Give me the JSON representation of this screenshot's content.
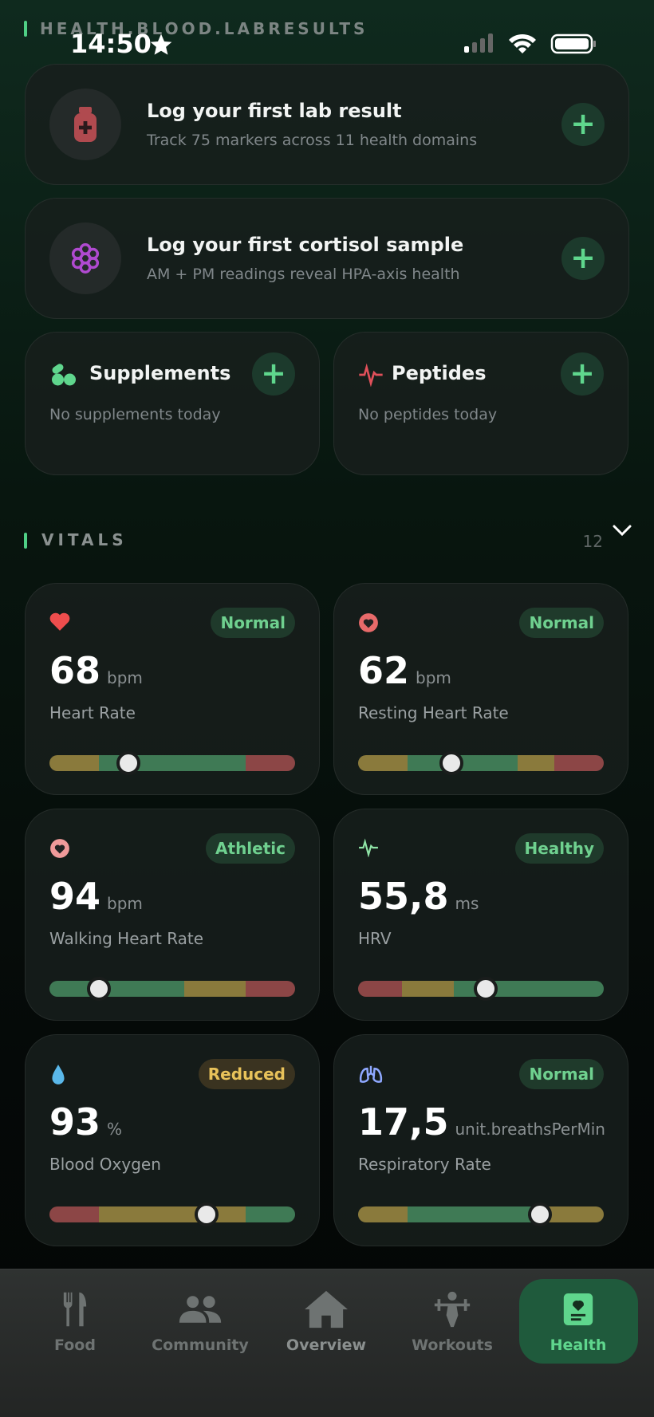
{
  "status_bar": {
    "time": "14:50"
  },
  "section_label": "HEALTH.BLOOD.LABRESULTS",
  "prompts": [
    {
      "title": "Log your first lab result",
      "subtitle": "Track 75 markers across 11 health domains"
    },
    {
      "title": "Log your first cortisol sample",
      "subtitle": "AM + PM readings reveal HPA-axis health"
    }
  ],
  "trackers": [
    {
      "title": "Supplements",
      "subtitle": "No supplements today"
    },
    {
      "title": "Peptides",
      "subtitle": "No peptides today"
    }
  ],
  "vitals": {
    "title": "VITALS",
    "count": 12,
    "cards": [
      {
        "value": "68",
        "unit": "bpm",
        "label": "Heart Rate",
        "status": "Normal"
      },
      {
        "value": "62",
        "unit": "bpm",
        "label": "Resting Heart Rate",
        "status": "Normal"
      },
      {
        "value": "94",
        "unit": "bpm",
        "label": "Walking Heart Rate",
        "status": "Athletic"
      },
      {
        "value": "55,8",
        "unit": "ms",
        "label": "HRV",
        "status": "Healthy"
      },
      {
        "value": "93",
        "unit": "%",
        "label": "Blood Oxygen",
        "status": "Reduced"
      },
      {
        "value": "17,5",
        "unit": "unit.breathsPerMin",
        "label": "Respiratory Rate",
        "status": "Normal"
      }
    ]
  },
  "nav": {
    "items": [
      "Food",
      "Community",
      "Overview",
      "Workouts",
      "Health"
    ],
    "active": 4
  }
}
